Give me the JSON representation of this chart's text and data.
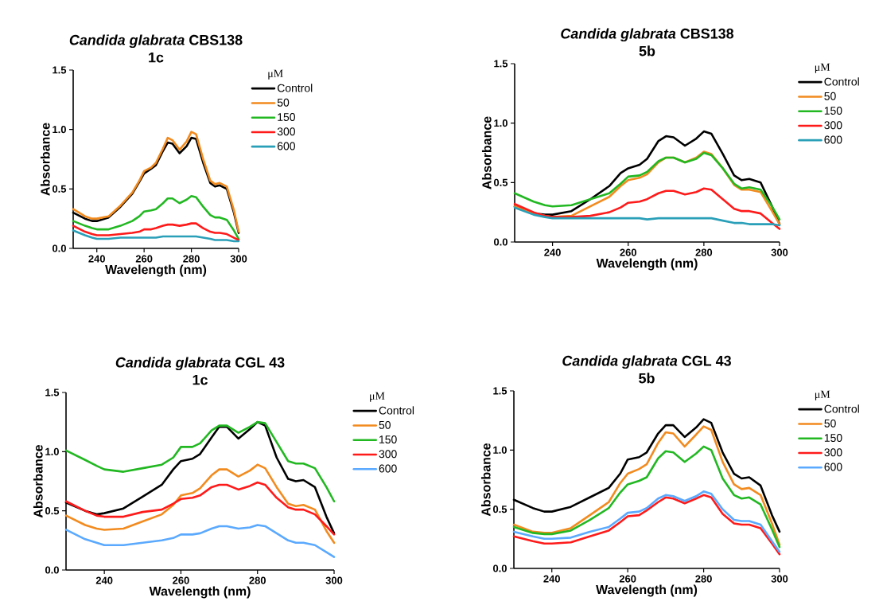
{
  "chart_data": [
    {
      "type": "line",
      "title": "*Candida glabrata* CBS138",
      "subtitle": "1c",
      "xlabel": "Wavelength (nm)",
      "ylabel": "Absorbance",
      "legend_title": "μM",
      "legend": "right",
      "line_style": "solid",
      "xlim": [
        230,
        300
      ],
      "ylim": [
        0,
        1.5
      ],
      "xticks": [
        240,
        260,
        280,
        300
      ],
      "yticks": [
        {
          "value": 0,
          "label": "0.0"
        },
        {
          "value": 0.5,
          "label": "0.5"
        },
        {
          "value": 1.0,
          "label": "1.0"
        },
        {
          "value": 1.5,
          "label": "1.5"
        }
      ],
      "x": [
        230,
        235,
        238,
        240,
        245,
        250,
        255,
        258,
        260,
        263,
        265,
        268,
        270,
        272,
        275,
        278,
        280,
        282,
        285,
        288,
        290,
        292,
        295,
        298,
        300
      ],
      "series": [
        {
          "name": "Control",
          "color": "#000000",
          "values": [
            0.3,
            0.25,
            0.23,
            0.23,
            0.26,
            0.35,
            0.46,
            0.56,
            0.63,
            0.67,
            0.7,
            0.82,
            0.89,
            0.88,
            0.8,
            0.86,
            0.93,
            0.92,
            0.72,
            0.55,
            0.52,
            0.53,
            0.5,
            0.3,
            0.13
          ]
        },
        {
          "name": "50",
          "color": "#f28b1f",
          "values": [
            0.33,
            0.27,
            0.25,
            0.25,
            0.27,
            0.36,
            0.47,
            0.57,
            0.65,
            0.68,
            0.72,
            0.84,
            0.93,
            0.91,
            0.83,
            0.9,
            0.98,
            0.96,
            0.75,
            0.57,
            0.54,
            0.55,
            0.52,
            0.32,
            0.14
          ]
        },
        {
          "name": "150",
          "color": "#22b822",
          "values": [
            0.23,
            0.19,
            0.17,
            0.16,
            0.16,
            0.19,
            0.23,
            0.27,
            0.31,
            0.32,
            0.33,
            0.38,
            0.42,
            0.42,
            0.38,
            0.41,
            0.44,
            0.43,
            0.35,
            0.28,
            0.26,
            0.26,
            0.24,
            0.15,
            0.08
          ]
        },
        {
          "name": "300",
          "color": "#ff1a1a",
          "values": [
            0.19,
            0.14,
            0.12,
            0.11,
            0.11,
            0.12,
            0.13,
            0.14,
            0.16,
            0.16,
            0.17,
            0.19,
            0.2,
            0.2,
            0.19,
            0.2,
            0.21,
            0.21,
            0.17,
            0.14,
            0.13,
            0.13,
            0.12,
            0.09,
            0.07
          ]
        },
        {
          "name": "600",
          "color": "#2a9fb8",
          "values": [
            0.15,
            0.11,
            0.09,
            0.08,
            0.08,
            0.09,
            0.09,
            0.09,
            0.09,
            0.09,
            0.09,
            0.1,
            0.1,
            0.1,
            0.1,
            0.1,
            0.1,
            0.1,
            0.09,
            0.08,
            0.07,
            0.07,
            0.07,
            0.06,
            0.06
          ]
        }
      ]
    },
    {
      "type": "line",
      "title": "*Candida glabrata* CBS138",
      "subtitle": "5b",
      "xlabel": "Wavelength (nm)",
      "ylabel": "Absorbance",
      "legend_title": "μM",
      "legend": "right",
      "line_style": "solid",
      "xlim": [
        230,
        300
      ],
      "ylim": [
        0,
        1.5
      ],
      "xticks": [
        240,
        260,
        280,
        300
      ],
      "yticks": [
        {
          "value": 0,
          "label": "0.0"
        },
        {
          "value": 0.5,
          "label": "0.5"
        },
        {
          "value": 1.0,
          "label": "1.0"
        },
        {
          "value": 1.5,
          "label": "1.5"
        }
      ],
      "x": [
        230,
        235,
        238,
        240,
        245,
        250,
        255,
        258,
        260,
        263,
        265,
        268,
        270,
        272,
        275,
        278,
        280,
        282,
        285,
        288,
        290,
        292,
        295,
        298,
        300
      ],
      "series": [
        {
          "name": "Control",
          "color": "#000000",
          "values": [
            0.3,
            0.24,
            0.23,
            0.23,
            0.26,
            0.36,
            0.47,
            0.58,
            0.62,
            0.65,
            0.7,
            0.85,
            0.89,
            0.88,
            0.81,
            0.87,
            0.93,
            0.91,
            0.74,
            0.56,
            0.52,
            0.53,
            0.5,
            0.3,
            0.15
          ]
        },
        {
          "name": "50",
          "color": "#f28b1f",
          "values": [
            0.3,
            0.24,
            0.22,
            0.21,
            0.22,
            0.3,
            0.38,
            0.47,
            0.52,
            0.54,
            0.57,
            0.67,
            0.71,
            0.71,
            0.67,
            0.71,
            0.76,
            0.74,
            0.62,
            0.48,
            0.44,
            0.44,
            0.42,
            0.26,
            0.15
          ]
        },
        {
          "name": "150",
          "color": "#22b822",
          "values": [
            0.41,
            0.34,
            0.31,
            0.3,
            0.31,
            0.36,
            0.41,
            0.49,
            0.55,
            0.56,
            0.59,
            0.68,
            0.71,
            0.71,
            0.67,
            0.7,
            0.75,
            0.73,
            0.62,
            0.49,
            0.45,
            0.46,
            0.44,
            0.3,
            0.19
          ]
        },
        {
          "name": "300",
          "color": "#ff1a1a",
          "values": [
            0.32,
            0.25,
            0.22,
            0.21,
            0.21,
            0.22,
            0.25,
            0.29,
            0.33,
            0.34,
            0.36,
            0.41,
            0.43,
            0.43,
            0.4,
            0.42,
            0.45,
            0.44,
            0.36,
            0.28,
            0.26,
            0.26,
            0.24,
            0.16,
            0.11
          ]
        },
        {
          "name": "600",
          "color": "#2a9fb8",
          "values": [
            0.29,
            0.23,
            0.21,
            0.2,
            0.2,
            0.2,
            0.2,
            0.2,
            0.2,
            0.2,
            0.19,
            0.2,
            0.2,
            0.2,
            0.2,
            0.2,
            0.2,
            0.2,
            0.18,
            0.16,
            0.16,
            0.15,
            0.15,
            0.15,
            0.14
          ]
        }
      ]
    },
    {
      "type": "line",
      "title": "*Candida glabrata* CGL 43",
      "subtitle": "1c",
      "xlabel": "Wavelength (nm)",
      "ylabel": "Absorbance",
      "legend_title": "μM",
      "legend": "right",
      "line_style": "solid",
      "xlim": [
        230,
        300
      ],
      "ylim": [
        0,
        1.5
      ],
      "xticks": [
        240,
        260,
        280,
        300
      ],
      "yticks": [
        {
          "value": 0,
          "label": "0.0"
        },
        {
          "value": 0.5,
          "label": "0.5"
        },
        {
          "value": 1.0,
          "label": "1.0"
        },
        {
          "value": 1.5,
          "label": "1.5"
        }
      ],
      "x": [
        230,
        235,
        238,
        240,
        245,
        250,
        255,
        258,
        260,
        263,
        265,
        268,
        270,
        272,
        275,
        278,
        280,
        282,
        285,
        288,
        290,
        292,
        295,
        298,
        300
      ],
      "series": [
        {
          "name": "Control",
          "color": "#000000",
          "values": [
            0.57,
            0.5,
            0.47,
            0.48,
            0.52,
            0.62,
            0.72,
            0.85,
            0.92,
            0.94,
            0.98,
            1.12,
            1.21,
            1.21,
            1.11,
            1.19,
            1.25,
            1.22,
            0.95,
            0.77,
            0.75,
            0.76,
            0.7,
            0.45,
            0.31
          ]
        },
        {
          "name": "50",
          "color": "#f28b1f",
          "values": [
            0.46,
            0.38,
            0.35,
            0.34,
            0.35,
            0.41,
            0.47,
            0.55,
            0.63,
            0.65,
            0.69,
            0.8,
            0.85,
            0.85,
            0.79,
            0.84,
            0.89,
            0.86,
            0.7,
            0.56,
            0.54,
            0.55,
            0.51,
            0.33,
            0.23
          ]
        },
        {
          "name": "150",
          "color": "#22b822",
          "values": [
            1.01,
            0.93,
            0.88,
            0.85,
            0.83,
            0.86,
            0.89,
            0.95,
            1.04,
            1.04,
            1.07,
            1.18,
            1.22,
            1.22,
            1.16,
            1.21,
            1.25,
            1.24,
            1.08,
            0.92,
            0.9,
            0.9,
            0.86,
            0.7,
            0.58
          ]
        },
        {
          "name": "300",
          "color": "#ff1a1a",
          "values": [
            0.58,
            0.5,
            0.46,
            0.45,
            0.45,
            0.49,
            0.51,
            0.56,
            0.6,
            0.61,
            0.63,
            0.7,
            0.72,
            0.72,
            0.68,
            0.71,
            0.74,
            0.72,
            0.61,
            0.53,
            0.51,
            0.51,
            0.47,
            0.37,
            0.3
          ]
        },
        {
          "name": "600",
          "color": "#5aa9ff",
          "values": [
            0.34,
            0.26,
            0.23,
            0.21,
            0.21,
            0.23,
            0.25,
            0.27,
            0.3,
            0.3,
            0.31,
            0.35,
            0.37,
            0.37,
            0.35,
            0.36,
            0.38,
            0.37,
            0.31,
            0.25,
            0.23,
            0.23,
            0.21,
            0.15,
            0.11
          ]
        }
      ]
    },
    {
      "type": "line",
      "title": "*Candida glabrata* CGL 43",
      "subtitle": "5b",
      "xlabel": "Wavelength (nm)",
      "ylabel": "Absorbance",
      "legend_title": "μM",
      "legend": "right",
      "line_style": "solid",
      "xlim": [
        230,
        300
      ],
      "ylim": [
        0,
        1.5
      ],
      "xticks": [
        240,
        260,
        280,
        300
      ],
      "yticks": [
        {
          "value": 0,
          "label": "0.0"
        },
        {
          "value": 0.5,
          "label": "0.5"
        },
        {
          "value": 1.0,
          "label": "1.0"
        },
        {
          "value": 1.5,
          "label": "1.5"
        }
      ],
      "x": [
        230,
        235,
        238,
        240,
        245,
        250,
        255,
        258,
        260,
        263,
        265,
        268,
        270,
        272,
        275,
        278,
        280,
        282,
        285,
        288,
        290,
        292,
        295,
        298,
        300
      ],
      "series": [
        {
          "name": "Control",
          "color": "#000000",
          "values": [
            0.58,
            0.51,
            0.48,
            0.48,
            0.52,
            0.6,
            0.68,
            0.8,
            0.92,
            0.94,
            0.98,
            1.14,
            1.21,
            1.21,
            1.11,
            1.19,
            1.26,
            1.23,
            0.98,
            0.8,
            0.76,
            0.77,
            0.7,
            0.45,
            0.31
          ]
        },
        {
          "name": "50",
          "color": "#f28b1f",
          "values": [
            0.37,
            0.31,
            0.3,
            0.3,
            0.34,
            0.45,
            0.56,
            0.72,
            0.8,
            0.84,
            0.88,
            1.06,
            1.15,
            1.14,
            1.03,
            1.13,
            1.2,
            1.17,
            0.9,
            0.71,
            0.67,
            0.68,
            0.62,
            0.38,
            0.2
          ]
        },
        {
          "name": "150",
          "color": "#22b822",
          "values": [
            0.35,
            0.3,
            0.29,
            0.29,
            0.32,
            0.41,
            0.51,
            0.64,
            0.71,
            0.74,
            0.77,
            0.93,
            0.99,
            0.98,
            0.9,
            0.97,
            1.03,
            1.0,
            0.76,
            0.62,
            0.59,
            0.6,
            0.54,
            0.33,
            0.18
          ]
        },
        {
          "name": "300",
          "color": "#ff1a1a",
          "values": [
            0.27,
            0.23,
            0.21,
            0.21,
            0.22,
            0.27,
            0.32,
            0.39,
            0.44,
            0.45,
            0.49,
            0.56,
            0.6,
            0.59,
            0.55,
            0.59,
            0.62,
            0.6,
            0.46,
            0.38,
            0.37,
            0.37,
            0.34,
            0.21,
            0.12
          ]
        },
        {
          "name": "600",
          "color": "#5aa9ff",
          "values": [
            0.31,
            0.27,
            0.25,
            0.25,
            0.26,
            0.31,
            0.35,
            0.42,
            0.47,
            0.48,
            0.51,
            0.59,
            0.62,
            0.61,
            0.57,
            0.61,
            0.65,
            0.63,
            0.5,
            0.41,
            0.4,
            0.4,
            0.37,
            0.23,
            0.14
          ]
        }
      ]
    }
  ]
}
